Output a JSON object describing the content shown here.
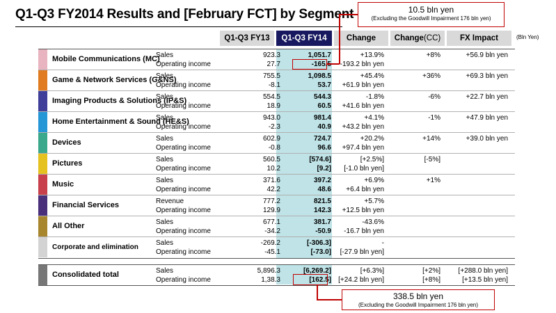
{
  "title": "Q1-Q3 FY2014  Results and [February FCT] by Segment",
  "unit": "(Bln Yen)",
  "callout_top": {
    "value": "10.5 bln yen",
    "note": "(Excluding the Goodwill Impairment 176 bln yen)"
  },
  "callout_bottom": {
    "value": "338.5 bln yen",
    "note": "(Excluding the Goodwill Impairment 176 bln yen)"
  },
  "headers": {
    "q1q3_fy13": "Q1-Q3 FY13",
    "q1q3_fy14": "Q1-Q3 FY14",
    "change": "Change",
    "change_cc": "Change",
    "change_cc_suffix": "(CC)",
    "fx_impact": "FX Impact"
  },
  "colors": {
    "MC": "#e8b4c0",
    "GNS": "#e07b21",
    "IPS": "#3f3f9a",
    "HES": "#2596d6",
    "Devices": "#3aa88a",
    "Pictures": "#e5c21f",
    "Music": "#c7404b",
    "Financial": "#4a2f7a",
    "Other": "#a8862d",
    "Corporate": "#d3d3d3",
    "Total": "#777777"
  },
  "segments": [
    {
      "name": "Mobile Communications (MC)",
      "line1": {
        "label": "Sales",
        "fy13": "923.3",
        "fy14": "1,051.7",
        "change": "+13.9%",
        "change_cc": "+8%",
        "fx": "+56.9 bln yen"
      },
      "line2": {
        "label": "Operating income",
        "fy13": "27.7",
        "fy14": "-165.5",
        "change": "-193.2 bln yen",
        "change_cc": "",
        "fx": ""
      }
    },
    {
      "name": "Game & Network Services (G&NS)",
      "line1": {
        "label": "Sales",
        "fy13": "755.5",
        "fy14": "1,098.5",
        "change": "+45.4%",
        "change_cc": "+36%",
        "fx": "+69.3 bln yen"
      },
      "line2": {
        "label": "Operating income",
        "fy13": "-8.1",
        "fy14": "53.7",
        "change": "+61.9 bln yen",
        "change_cc": "",
        "fx": ""
      }
    },
    {
      "name": "Imaging Products & Solutions (IP&S)",
      "line1": {
        "label": "Sales",
        "fy13": "554.5",
        "fy14": "544.3",
        "change": "-1.8%",
        "change_cc": "-6%",
        "fx": "+22.7 bln yen"
      },
      "line2": {
        "label": "Operating income",
        "fy13": "18.9",
        "fy14": "60.5",
        "change": "+41.6 bln yen",
        "change_cc": "",
        "fx": ""
      }
    },
    {
      "name": "Home Entertainment & Sound (HE&S)",
      "line1": {
        "label": "Sales",
        "fy13": "943.0",
        "fy14": "981.4",
        "change": "+4.1%",
        "change_cc": "-1%",
        "fx": "+47.9 bln yen"
      },
      "line2": {
        "label": "Operating income",
        "fy13": "-2.3",
        "fy14": "40.9",
        "change": "+43.2 bln yen",
        "change_cc": "",
        "fx": ""
      }
    },
    {
      "name": "Devices",
      "line1": {
        "label": "Sales",
        "fy13": "602.9",
        "fy14": "724.7",
        "change": "+20.2%",
        "change_cc": "+14%",
        "fx": "+39.0 bln yen"
      },
      "line2": {
        "label": "Operating income",
        "fy13": "-0.8",
        "fy14": "96.6",
        "change": "+97.4 bln yen",
        "change_cc": "",
        "fx": ""
      }
    },
    {
      "name": "Pictures",
      "line1": {
        "label": "Sales",
        "fy13": "560.5",
        "fy14": "[574.6]",
        "change": "[+2.5%]",
        "change_cc": "[-5%]",
        "fx": ""
      },
      "line2": {
        "label": "Operating income",
        "fy13": "10.2",
        "fy14": "[9.2]",
        "change": "[-1.0 bln yen]",
        "change_cc": "",
        "fx": ""
      }
    },
    {
      "name": "Music",
      "line1": {
        "label": "Sales",
        "fy13": "371.6",
        "fy14": "397.2",
        "change": "+6.9%",
        "change_cc": "+1%",
        "fx": ""
      },
      "line2": {
        "label": "Operating income",
        "fy13": "42.2",
        "fy14": "48.6",
        "change": "+6.4 bln yen",
        "change_cc": "",
        "fx": ""
      }
    },
    {
      "name": "Financial Services",
      "line1": {
        "label": "Revenue",
        "fy13": "777.2",
        "fy14": "821.5",
        "change": "+5.7%",
        "change_cc": "",
        "fx": ""
      },
      "line2": {
        "label": "Operating income",
        "fy13": "129.9",
        "fy14": "142.3",
        "change": "+12.5 bln yen",
        "change_cc": "",
        "fx": ""
      }
    },
    {
      "name": "All Other",
      "line1": {
        "label": "Sales",
        "fy13": "677.1",
        "fy14": "381.7",
        "change": "-43.6%",
        "change_cc": "",
        "fx": ""
      },
      "line2": {
        "label": "Operating income",
        "fy13": "-34.2",
        "fy14": "-50.9",
        "change": "-16.7 bln yen",
        "change_cc": "",
        "fx": ""
      }
    },
    {
      "name": "Corporate and elimination",
      "line1": {
        "label": "Sales",
        "fy13": "-269.2",
        "fy14": "[-306.3]",
        "change": "-",
        "change_cc": "",
        "fx": ""
      },
      "line2": {
        "label": "Operating income",
        "fy13": "-45.1",
        "fy14": "[-73.0]",
        "change": "[-27.9 bln yen]",
        "change_cc": "",
        "fx": ""
      }
    }
  ],
  "total": {
    "name": "Consolidated total",
    "line1": {
      "label": "Sales",
      "fy13": "5,896.3",
      "fy14": "[6,269.2]",
      "change": "[+6.3%]",
      "change_cc": "[+2%]",
      "fx": "[+288.0 bln yen]"
    },
    "line2": {
      "label": "Operating income",
      "fy13": "1,38.3",
      "fy14": "[162.5]",
      "change": "[+24.2 bln yen]",
      "change_cc": "[+8%]",
      "fx": "[+13.5 bln yen]"
    }
  }
}
